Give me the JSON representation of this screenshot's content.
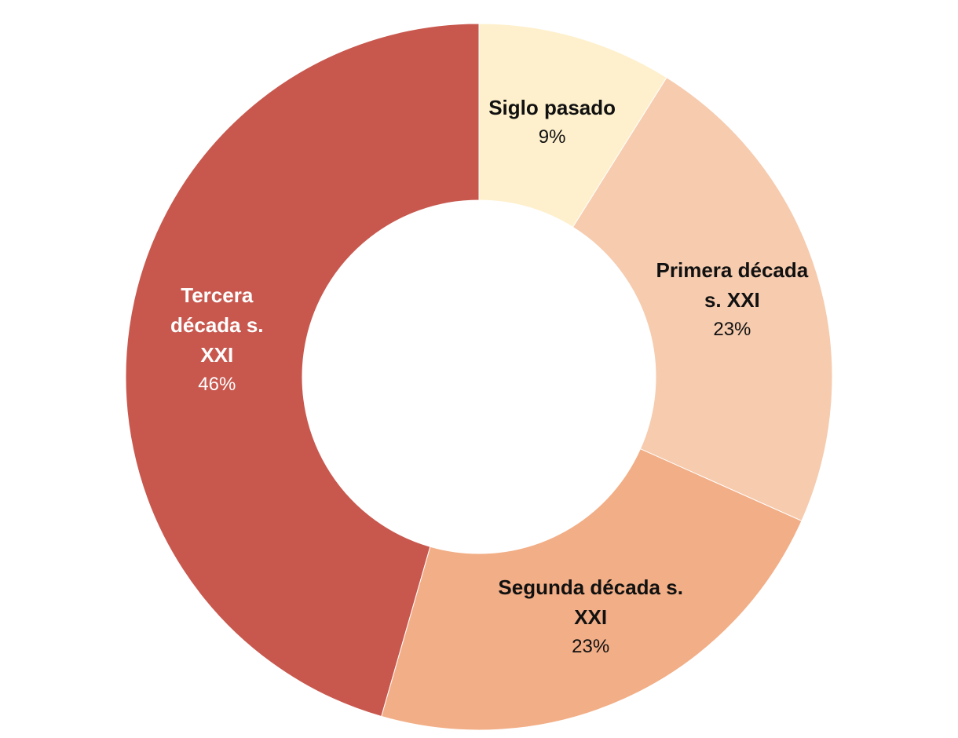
{
  "chart_data": {
    "type": "donut",
    "categories": [
      "Siglo pasado",
      "Primera década s. XXI",
      "Segunda década s. XXI",
      "Tercera década s. XXI"
    ],
    "values": [
      9,
      23,
      23,
      46
    ],
    "value_labels": [
      "9%",
      "23%",
      "23%",
      "46%"
    ],
    "colors": [
      "#fef0cc",
      "#f6cbae",
      "#f2ae86",
      "#c8584e"
    ]
  }
}
